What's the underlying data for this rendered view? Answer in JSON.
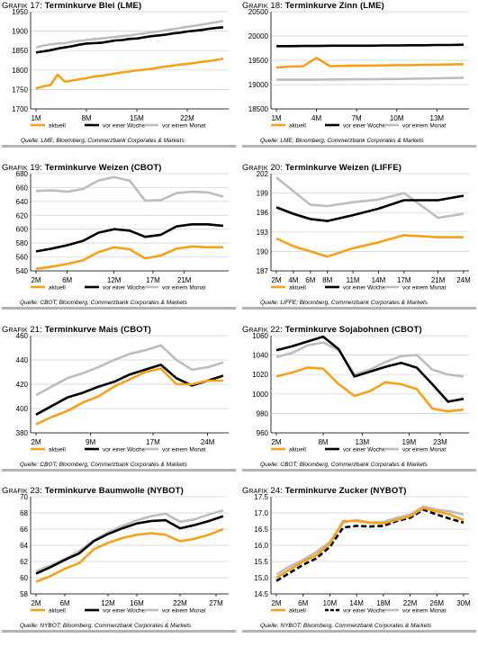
{
  "legend_labels": [
    "aktuell",
    "vor einer Woche",
    "vor einem Monat"
  ],
  "colors": {
    "aktuell": "#F7A11A",
    "vor einer Woche": "#000000",
    "vor einem Monat": "#BDBDBD",
    "rule": "#B3B3B3"
  },
  "charts": [
    {
      "label": "Grafik 17:",
      "title": "Terminkurve Blei (LME)",
      "source": "Quelle: LME; Bloomberg, Commerzbank Corporates & Markets",
      "chart_data": {
        "type": "line",
        "x": [
          1,
          2,
          3,
          4,
          5,
          6,
          7,
          8,
          9,
          10,
          11,
          12,
          13,
          14,
          15,
          16,
          17,
          18,
          19,
          20,
          21,
          22,
          23,
          24,
          25,
          26,
          27
        ],
        "xticks": [
          1,
          8,
          15,
          22
        ],
        "xtick_labels": [
          "1M",
          "8M",
          "15M",
          "22M"
        ],
        "ylim": [
          1700,
          1950
        ],
        "yticks": [
          1700,
          1750,
          1800,
          1850,
          1900,
          1950
        ],
        "series": [
          {
            "name": "aktuell",
            "dash": false,
            "values": [
              1752,
              1758,
              1761,
              1788,
              1770,
              1773,
              1776,
              1779,
              1783,
              1785,
              1788,
              1791,
              1794,
              1796,
              1799,
              1801,
              1803,
              1806,
              1809,
              1811,
              1814,
              1816,
              1818,
              1821,
              1823,
              1826,
              1829
            ]
          },
          {
            "name": "vor einer Woche",
            "dash": false,
            "values": [
              1845,
              1848,
              1851,
              1855,
              1858,
              1861,
              1865,
              1868,
              1869,
              1870,
              1873,
              1876,
              1877,
              1880,
              1881,
              1884,
              1887,
              1889,
              1891,
              1894,
              1896,
              1899,
              1901,
              1903,
              1906,
              1908,
              1910
            ]
          },
          {
            "name": "vor einem Monat",
            "dash": false,
            "values": [
              1858,
              1863,
              1866,
              1868,
              1869,
              1873,
              1875,
              1877,
              1879,
              1881,
              1883,
              1885,
              1887,
              1889,
              1892,
              1894,
              1897,
              1899,
              1902,
              1905,
              1908,
              1911,
              1914,
              1917,
              1920,
              1923,
              1926
            ]
          }
        ]
      }
    },
    {
      "label": "Grafik 18:",
      "title": "Terminkurve Zinn (LME)",
      "source": "Quelle: LME; Bloomberg, Commerzbank Corporates & Markets",
      "chart_data": {
        "type": "line",
        "x": [
          1,
          2,
          3,
          4,
          5,
          6,
          7,
          8,
          9,
          10,
          11,
          12,
          13,
          14,
          15
        ],
        "xticks": [
          1,
          4,
          7,
          10,
          13
        ],
        "xtick_labels": [
          "1M",
          "4M",
          "7M",
          "10M",
          "13M"
        ],
        "ylim": [
          18500,
          20500
        ],
        "yticks": [
          18500,
          19000,
          19500,
          20000,
          20500
        ],
        "series": [
          {
            "name": "aktuell",
            "dash": false,
            "values": [
              19350,
              19370,
              19380,
              19550,
              19380,
              19385,
              19390,
              19390,
              19395,
              19400,
              19400,
              19405,
              19410,
              19415,
              19420
            ]
          },
          {
            "name": "vor einer Woche",
            "dash": false,
            "values": [
              19790,
              19790,
              19795,
              19795,
              19800,
              19800,
              19800,
              19800,
              19805,
              19805,
              19810,
              19810,
              19815,
              19815,
              19820
            ]
          },
          {
            "name": "vor einem Monat",
            "dash": false,
            "values": [
              19100,
              19100,
              19100,
              19100,
              19105,
              19105,
              19110,
              19110,
              19115,
              19115,
              19120,
              19125,
              19130,
              19135,
              19140
            ]
          }
        ]
      }
    },
    {
      "label": "Grafik 19:",
      "title": "Terminkurve Weizen (CBOT)",
      "source": "Quelle: CBOT; Bloomberg, Commerzbank Corporates & Markets",
      "chart_data": {
        "type": "line",
        "x": [
          2,
          4,
          6,
          8,
          10,
          12,
          14,
          16,
          18,
          20,
          22,
          24,
          26
        ],
        "xticks": [
          2,
          6,
          12,
          17,
          21
        ],
        "xtick_labels": [
          "2M",
          "6M",
          "12M",
          "17M",
          "21M"
        ],
        "ylim": [
          540,
          680
        ],
        "yticks": [
          540,
          560,
          580,
          600,
          620,
          640,
          660,
          680
        ],
        "series": [
          {
            "name": "aktuell",
            "dash": false,
            "values": [
              543,
              546,
              550,
              555,
              567,
              574,
              571,
              558,
              562,
              572,
              575,
              574,
              574
            ]
          },
          {
            "name": "vor einer Woche",
            "dash": false,
            "values": [
              568,
              572,
              577,
              583,
              595,
              600,
              598,
              589,
              592,
              604,
              607,
              607,
              605
            ]
          },
          {
            "name": "vor einem Monat",
            "dash": false,
            "values": [
              655,
              656,
              654,
              658,
              670,
              675,
              670,
              641,
              642,
              652,
              654,
              653,
              647
            ]
          }
        ]
      }
    },
    {
      "label": "Grafik 20:",
      "title": "Terminkurve Weizen (LIFFE)",
      "source": "Quelle: LIFFE; Bloomberg, Commerzbank Corporates & Markets",
      "chart_data": {
        "type": "line",
        "x": [
          2,
          4,
          6,
          8,
          11,
          14,
          17,
          21,
          24
        ],
        "xticks": [
          2,
          4,
          6,
          8,
          11,
          14,
          17,
          21,
          24
        ],
        "xtick_labels": [
          "2M",
          "4M",
          "6M",
          "8M",
          "11M",
          "14M",
          "17M",
          "21M",
          "24M"
        ],
        "ylim": [
          187,
          202
        ],
        "yticks": [
          187,
          190,
          193,
          196,
          199,
          202
        ],
        "series": [
          {
            "name": "aktuell",
            "dash": false,
            "values": [
              192.0,
              190.8,
              190.0,
              189.2,
              190.5,
              191.4,
              192.5,
              192.2,
              192.2
            ]
          },
          {
            "name": "vor einer Woche",
            "dash": false,
            "values": [
              196.8,
              195.8,
              195.0,
              194.7,
              195.6,
              196.6,
              197.9,
              197.9,
              198.6
            ]
          },
          {
            "name": "vor einem Monat",
            "dash": false,
            "values": [
              201.4,
              199.3,
              197.2,
              197.0,
              197.6,
              198.0,
              199.0,
              195.2,
              195.8
            ]
          }
        ]
      }
    },
    {
      "label": "Grafik 21:",
      "title": "Terminkurve Mais (CBOT)",
      "source": "Quelle: CBOT; Bloomberg, Commerzbank Corporates & Markets",
      "chart_data": {
        "type": "line",
        "x": [
          2,
          4,
          6,
          8,
          10,
          12,
          14,
          16,
          18,
          20,
          22,
          24,
          26
        ],
        "xticks": [
          2,
          9,
          17,
          24
        ],
        "xtick_labels": [
          "2M",
          "9M",
          "17M",
          "24M"
        ],
        "ylim": [
          380,
          460
        ],
        "yticks": [
          380,
          400,
          420,
          440,
          460
        ],
        "series": [
          {
            "name": "aktuell",
            "dash": false,
            "values": [
              387,
              393,
              398,
              405,
              410,
              418,
              424,
              430,
              433,
              420,
              420,
              423,
              423
            ]
          },
          {
            "name": "vor einer Woche",
            "dash": false,
            "values": [
              395,
              402,
              409,
              413,
              418,
              422,
              428,
              432,
              436,
              425,
              419,
              423,
              427
            ]
          },
          {
            "name": "vor einem Monat",
            "dash": false,
            "values": [
              411,
              418,
              425,
              429,
              434,
              440,
              445,
              448,
              452,
              440,
              432,
              434,
              438
            ]
          }
        ]
      }
    },
    {
      "label": "Grafik 22:",
      "title": "Terminkurve Sojabohnen (CBOT)",
      "source": "Quelle: CBOT; Bloomberg, Commerzbank Corporates & Markets",
      "chart_data": {
        "type": "line",
        "x": [
          2,
          4,
          6,
          8,
          10,
          12,
          14,
          16,
          18,
          20,
          22,
          24,
          26
        ],
        "xticks": [
          2,
          8,
          13,
          19,
          23
        ],
        "xtick_labels": [
          "2M",
          "8M",
          "13M",
          "19M",
          "23M"
        ],
        "ylim": [
          960,
          1060
        ],
        "yticks": [
          960,
          980,
          1000,
          1020,
          1040,
          1060
        ],
        "series": [
          {
            "name": "aktuell",
            "dash": false,
            "values": [
              1018,
              1022,
              1027,
              1026,
              1010,
              998,
              1003,
              1012,
              1010,
              1005,
              985,
              982,
              984
            ]
          },
          {
            "name": "vor einer Woche",
            "dash": false,
            "values": [
              1045,
              1049,
              1054,
              1059,
              1046,
              1018,
              1023,
              1028,
              1032,
              1027,
              1010,
              992,
              995
            ]
          },
          {
            "name": "vor einem Monat",
            "dash": false,
            "values": [
              1038,
              1042,
              1050,
              1053,
              1045,
              1020,
              1025,
              1033,
              1039,
              1040,
              1025,
              1020,
              1018
            ]
          }
        ]
      }
    },
    {
      "label": "Grafik 23:",
      "title": "Terminkurve Baumwolle (NYBOT)",
      "source": "Quelle: NYBOT; Bloomberg, Commerzbank Corporates & Markets",
      "chart_data": {
        "type": "line",
        "x": [
          2,
          4,
          6,
          8,
          10,
          12,
          14,
          16,
          18,
          20,
          22,
          24,
          26,
          28
        ],
        "xticks": [
          2,
          6,
          12,
          16,
          22,
          27
        ],
        "xtick_labels": [
          "2M",
          "6M",
          "12M",
          "16M",
          "22M",
          "27M"
        ],
        "ylim": [
          58,
          70
        ],
        "yticks": [
          58,
          60,
          62,
          64,
          66,
          68,
          70
        ],
        "series": [
          {
            "name": "aktuell",
            "dash": false,
            "values": [
              59.5,
              60.2,
              61.1,
              61.8,
              63.5,
              64.3,
              64.9,
              65.3,
              65.5,
              65.3,
              64.5,
              64.8,
              65.3,
              66.0
            ]
          },
          {
            "name": "vor einer Woche",
            "dash": false,
            "values": [
              60.5,
              61.3,
              62.2,
              63.0,
              64.5,
              65.4,
              66.1,
              66.7,
              67.0,
              67.1,
              66.1,
              66.5,
              67.0,
              67.6
            ]
          },
          {
            "name": "vor einem Monat",
            "dash": false,
            "values": [
              60.8,
              61.5,
              62.3,
              63.3,
              64.6,
              65.6,
              66.4,
              67.1,
              67.6,
              67.9,
              66.9,
              67.2,
              67.8,
              68.3
            ]
          }
        ]
      }
    },
    {
      "label": "Grafik 24:",
      "title": "Terminkurve Zucker (NYBOT)",
      "source": "Quelle: NYBOT; Bloomberg, Commerzbank Corporates & Markets",
      "chart_data": {
        "type": "line",
        "x": [
          2,
          4,
          6,
          8,
          10,
          12,
          14,
          16,
          18,
          20,
          22,
          24,
          26,
          28,
          30
        ],
        "xticks": [
          2,
          6,
          10,
          14,
          18,
          22,
          26,
          30
        ],
        "xtick_labels": [
          "2M",
          "6M",
          "10M",
          "14M",
          "18M",
          "22M",
          "26M",
          "30M"
        ],
        "ylim": [
          14.5,
          17.5
        ],
        "yticks": [
          14.5,
          15.0,
          15.5,
          16.0,
          16.5,
          17.0,
          17.5
        ],
        "series": [
          {
            "name": "aktuell",
            "dash": false,
            "values": [
              15.0,
              15.25,
              15.5,
              15.7,
              16.05,
              16.75,
              16.75,
              16.7,
              16.68,
              16.78,
              16.9,
              17.15,
              17.05,
              16.95,
              16.78
            ]
          },
          {
            "name": "vor einer Woche",
            "dash": true,
            "values": [
              14.9,
              15.15,
              15.4,
              15.6,
              15.95,
              16.55,
              16.6,
              16.58,
              16.6,
              16.75,
              16.85,
              17.1,
              16.95,
              16.82,
              16.7
            ]
          },
          {
            "name": "vor einem Monat",
            "dash": false,
            "values": [
              15.1,
              15.35,
              15.55,
              15.8,
              16.1,
              16.7,
              16.78,
              16.7,
              16.72,
              16.85,
              16.95,
              17.2,
              17.1,
              17.05,
              16.95
            ]
          }
        ]
      }
    }
  ]
}
